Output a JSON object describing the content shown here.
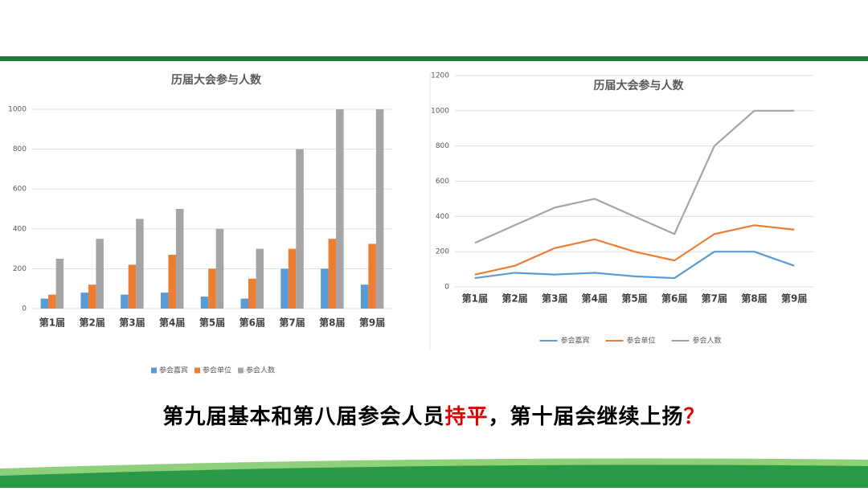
{
  "chart_data": [
    {
      "type": "bar",
      "title": "历届大会参与人数",
      "categories": [
        "第1届",
        "第2届",
        "第3届",
        "第4届",
        "第5届",
        "第6届",
        "第7届",
        "第8届",
        "第9届"
      ],
      "series": [
        {
          "name": "参会嘉宾",
          "color": "#5b9bd5",
          "values": [
            50,
            80,
            70,
            80,
            60,
            50,
            200,
            200,
            120
          ]
        },
        {
          "name": "参会单位",
          "color": "#ed7d31",
          "values": [
            70,
            120,
            220,
            270,
            200,
            150,
            300,
            350,
            325
          ]
        },
        {
          "name": "参会人数",
          "color": "#a5a5a5",
          "values": [
            250,
            350,
            450,
            500,
            400,
            300,
            800,
            1000,
            1000
          ]
        }
      ],
      "ylim": [
        0,
        1000
      ],
      "yticks": [
        0,
        200,
        400,
        600,
        800,
        1000
      ],
      "grid": true,
      "legend": "bottom"
    },
    {
      "type": "line",
      "title": "历届大会参与人数",
      "categories": [
        "第1届",
        "第2届",
        "第3届",
        "第4届",
        "第5届",
        "第6届",
        "第7届",
        "第8届",
        "第9届"
      ],
      "series": [
        {
          "name": "参会嘉宾",
          "color": "#5b9bd5",
          "values": [
            50,
            80,
            70,
            80,
            60,
            50,
            200,
            200,
            120
          ]
        },
        {
          "name": "参会单位",
          "color": "#ed7d31",
          "values": [
            70,
            120,
            220,
            270,
            200,
            150,
            300,
            350,
            325
          ]
        },
        {
          "name": "参会人数",
          "color": "#a5a5a5",
          "values": [
            250,
            350,
            450,
            500,
            400,
            300,
            800,
            1000,
            1000
          ]
        }
      ],
      "ylim": [
        0,
        1200
      ],
      "yticks": [
        0,
        200,
        400,
        600,
        800,
        1000,
        1200
      ],
      "grid": true,
      "legend": "bottom"
    }
  ],
  "caption": [
    "第九届基本和第八届参会人员",
    "持平",
    "，第十届会继续上扬",
    "？"
  ]
}
